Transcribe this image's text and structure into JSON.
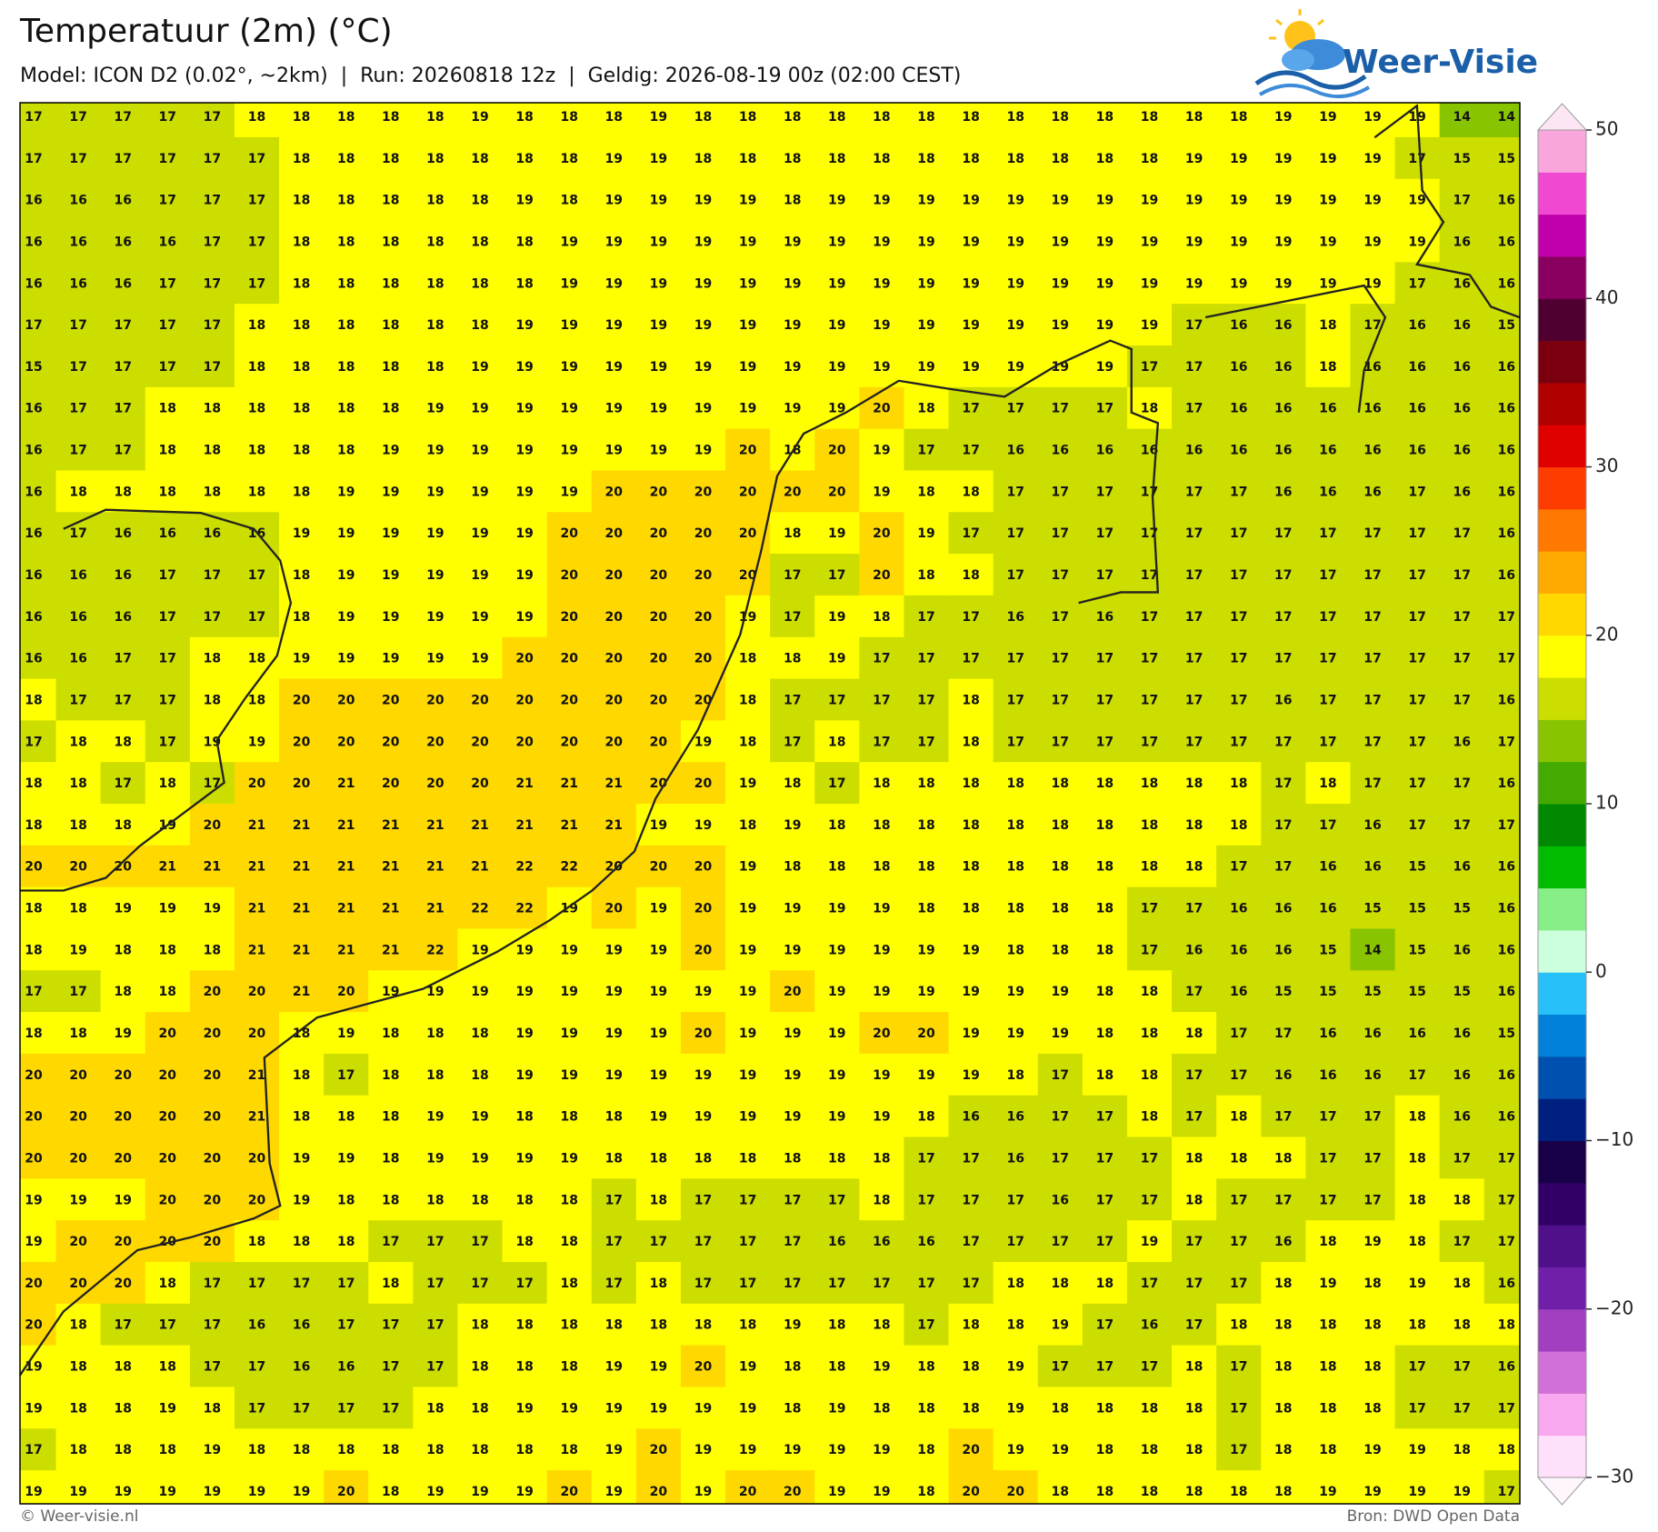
{
  "header": {
    "title": "Temperatuur (2m) (°C)",
    "subtitle": "Model: ICON D2 (0.02°, ~2km)  |  Run: 20260818 12z  |  Geldig: 2026-08-19 00z (02:00 CEST)",
    "logo": "Weer-Visie"
  },
  "map": {
    "rows": [
      [
        17,
        17,
        17,
        17,
        17,
        18,
        18,
        18,
        18,
        18,
        19,
        18,
        18,
        18,
        19,
        18,
        18,
        18,
        18,
        18,
        18,
        18,
        18,
        18,
        18,
        18,
        18,
        18,
        19,
        19,
        19,
        19,
        14,
        14
      ],
      [
        17,
        17,
        17,
        17,
        17,
        17,
        18,
        18,
        18,
        18,
        18,
        18,
        18,
        19,
        19,
        18,
        18,
        18,
        18,
        18,
        18,
        18,
        18,
        18,
        18,
        18,
        19,
        19,
        19,
        19,
        19,
        17,
        15,
        15
      ],
      [
        16,
        16,
        16,
        17,
        17,
        17,
        18,
        18,
        18,
        18,
        18,
        19,
        18,
        19,
        19,
        19,
        19,
        18,
        19,
        19,
        19,
        19,
        19,
        19,
        19,
        19,
        19,
        19,
        19,
        19,
        19,
        19,
        17,
        16
      ],
      [
        16,
        16,
        16,
        16,
        17,
        17,
        18,
        18,
        18,
        18,
        18,
        18,
        19,
        19,
        19,
        19,
        19,
        19,
        19,
        19,
        19,
        19,
        19,
        19,
        19,
        19,
        19,
        19,
        19,
        19,
        19,
        19,
        16,
        16
      ],
      [
        16,
        16,
        16,
        17,
        17,
        17,
        18,
        18,
        18,
        18,
        18,
        18,
        19,
        19,
        19,
        19,
        19,
        19,
        19,
        19,
        19,
        19,
        19,
        19,
        19,
        19,
        19,
        19,
        19,
        19,
        19,
        17,
        16,
        16
      ],
      [
        17,
        17,
        17,
        17,
        17,
        18,
        18,
        18,
        18,
        18,
        18,
        19,
        19,
        19,
        19,
        19,
        19,
        19,
        19,
        19,
        19,
        19,
        19,
        19,
        19,
        19,
        17,
        16,
        16,
        18,
        17,
        16,
        16,
        15
      ],
      [
        15,
        17,
        17,
        17,
        17,
        18,
        18,
        18,
        18,
        18,
        19,
        19,
        19,
        19,
        19,
        19,
        19,
        19,
        19,
        19,
        19,
        19,
        19,
        19,
        19,
        17,
        17,
        16,
        16,
        18,
        16,
        16,
        16,
        16
      ],
      [
        16,
        17,
        17,
        18,
        18,
        18,
        18,
        18,
        18,
        19,
        19,
        19,
        19,
        19,
        19,
        19,
        19,
        19,
        19,
        20,
        18,
        17,
        17,
        17,
        17,
        18,
        17,
        16,
        16,
        16,
        16,
        16,
        16,
        16
      ],
      [
        16,
        17,
        17,
        18,
        18,
        18,
        18,
        18,
        19,
        19,
        19,
        19,
        19,
        19,
        19,
        19,
        20,
        18,
        20,
        19,
        17,
        17,
        16,
        16,
        16,
        16,
        16,
        16,
        16,
        16,
        16,
        16,
        16,
        16
      ],
      [
        16,
        18,
        18,
        18,
        18,
        18,
        18,
        19,
        19,
        19,
        19,
        19,
        19,
        20,
        20,
        20,
        20,
        20,
        20,
        19,
        18,
        18,
        17,
        17,
        17,
        17,
        17,
        17,
        16,
        16,
        16,
        17,
        16,
        16
      ],
      [
        16,
        17,
        16,
        16,
        16,
        16,
        19,
        19,
        19,
        19,
        19,
        19,
        20,
        20,
        20,
        20,
        20,
        18,
        19,
        20,
        19,
        17,
        17,
        17,
        17,
        17,
        17,
        17,
        17,
        17,
        17,
        17,
        17,
        16
      ],
      [
        16,
        16,
        16,
        17,
        17,
        17,
        18,
        19,
        19,
        19,
        19,
        19,
        20,
        20,
        20,
        20,
        20,
        17,
        17,
        20,
        18,
        18,
        17,
        17,
        17,
        17,
        17,
        17,
        17,
        17,
        17,
        17,
        17,
        16
      ],
      [
        16,
        16,
        16,
        17,
        17,
        17,
        18,
        19,
        19,
        19,
        19,
        19,
        20,
        20,
        20,
        20,
        19,
        17,
        19,
        18,
        17,
        17,
        16,
        17,
        16,
        17,
        17,
        17,
        17,
        17,
        17,
        17,
        17,
        17
      ],
      [
        16,
        16,
        17,
        17,
        18,
        18,
        19,
        19,
        19,
        19,
        19,
        20,
        20,
        20,
        20,
        20,
        18,
        18,
        19,
        17,
        17,
        17,
        17,
        17,
        17,
        17,
        17,
        17,
        17,
        17,
        17,
        17,
        17,
        17
      ],
      [
        18,
        17,
        17,
        17,
        18,
        18,
        20,
        20,
        20,
        20,
        20,
        20,
        20,
        20,
        20,
        20,
        18,
        17,
        17,
        17,
        17,
        18,
        17,
        17,
        17,
        17,
        17,
        17,
        16,
        17,
        17,
        17,
        17,
        16
      ],
      [
        17,
        18,
        18,
        17,
        19,
        19,
        20,
        20,
        20,
        20,
        20,
        20,
        20,
        20,
        20,
        19,
        18,
        17,
        18,
        17,
        17,
        18,
        17,
        17,
        17,
        17,
        17,
        17,
        17,
        17,
        17,
        17,
        16,
        17
      ],
      [
        18,
        18,
        17,
        18,
        17,
        20,
        20,
        21,
        20,
        20,
        20,
        21,
        21,
        21,
        20,
        20,
        19,
        18,
        17,
        18,
        18,
        18,
        18,
        18,
        18,
        18,
        18,
        18,
        17,
        18,
        17,
        17,
        17,
        16
      ],
      [
        18,
        18,
        18,
        19,
        20,
        21,
        21,
        21,
        21,
        21,
        21,
        21,
        21,
        21,
        19,
        19,
        18,
        19,
        18,
        18,
        18,
        18,
        18,
        18,
        18,
        18,
        18,
        18,
        17,
        17,
        16,
        17,
        17,
        17
      ],
      [
        20,
        20,
        20,
        21,
        21,
        21,
        21,
        21,
        21,
        21,
        21,
        22,
        22,
        20,
        20,
        20,
        19,
        18,
        18,
        18,
        18,
        18,
        18,
        18,
        18,
        18,
        18,
        17,
        17,
        16,
        16,
        15,
        16,
        16
      ],
      [
        18,
        18,
        19,
        19,
        19,
        21,
        21,
        21,
        21,
        21,
        22,
        22,
        19,
        20,
        19,
        20,
        19,
        19,
        19,
        19,
        18,
        18,
        18,
        18,
        18,
        17,
        17,
        16,
        16,
        16,
        15,
        15,
        15,
        16
      ],
      [
        18,
        19,
        18,
        18,
        18,
        21,
        21,
        21,
        21,
        22,
        19,
        19,
        19,
        19,
        19,
        20,
        19,
        19,
        19,
        19,
        19,
        19,
        18,
        18,
        18,
        17,
        16,
        16,
        16,
        15,
        14,
        15,
        16,
        16
      ],
      [
        17,
        17,
        18,
        18,
        20,
        20,
        21,
        20,
        19,
        19,
        19,
        19,
        19,
        19,
        19,
        19,
        19,
        20,
        19,
        19,
        19,
        19,
        19,
        19,
        18,
        18,
        17,
        16,
        15,
        15,
        15,
        15,
        15,
        16
      ],
      [
        18,
        18,
        19,
        20,
        20,
        20,
        18,
        19,
        18,
        18,
        18,
        19,
        19,
        19,
        19,
        20,
        19,
        19,
        19,
        20,
        20,
        19,
        19,
        19,
        18,
        18,
        18,
        17,
        17,
        16,
        16,
        16,
        16,
        15
      ],
      [
        20,
        20,
        20,
        20,
        20,
        21,
        18,
        17,
        18,
        18,
        18,
        19,
        19,
        19,
        19,
        19,
        19,
        19,
        19,
        19,
        19,
        19,
        18,
        17,
        18,
        18,
        17,
        17,
        16,
        16,
        16,
        17,
        16,
        16
      ],
      [
        20,
        20,
        20,
        20,
        20,
        21,
        18,
        18,
        18,
        19,
        19,
        18,
        18,
        18,
        19,
        19,
        19,
        19,
        19,
        19,
        18,
        16,
        16,
        17,
        17,
        18,
        17,
        18,
        17,
        17,
        17,
        18,
        16,
        16
      ],
      [
        20,
        20,
        20,
        20,
        20,
        20,
        19,
        19,
        18,
        19,
        19,
        19,
        19,
        18,
        18,
        18,
        18,
        18,
        18,
        18,
        17,
        17,
        16,
        17,
        17,
        17,
        18,
        18,
        18,
        17,
        17,
        18,
        17,
        17
      ],
      [
        19,
        19,
        19,
        20,
        20,
        20,
        19,
        18,
        18,
        18,
        18,
        18,
        18,
        17,
        18,
        17,
        17,
        17,
        17,
        18,
        17,
        17,
        17,
        16,
        17,
        17,
        18,
        17,
        17,
        17,
        17,
        18,
        18,
        17
      ],
      [
        19,
        20,
        20,
        20,
        20,
        18,
        18,
        18,
        17,
        17,
        17,
        18,
        18,
        17,
        17,
        17,
        17,
        17,
        16,
        16,
        16,
        17,
        17,
        17,
        17,
        19,
        17,
        17,
        16,
        18,
        19,
        18,
        17,
        17
      ],
      [
        20,
        20,
        20,
        18,
        17,
        17,
        17,
        17,
        18,
        17,
        17,
        17,
        18,
        17,
        18,
        17,
        17,
        17,
        17,
        17,
        17,
        17,
        18,
        18,
        18,
        17,
        17,
        17,
        18,
        19,
        18,
        19,
        18,
        16
      ],
      [
        20,
        18,
        17,
        17,
        17,
        16,
        16,
        17,
        17,
        17,
        18,
        18,
        18,
        18,
        18,
        18,
        18,
        19,
        18,
        18,
        17,
        18,
        18,
        19,
        17,
        16,
        17,
        18,
        18,
        18,
        18,
        18,
        18,
        18
      ],
      [
        19,
        18,
        18,
        18,
        17,
        17,
        16,
        16,
        17,
        17,
        18,
        18,
        18,
        19,
        19,
        20,
        19,
        18,
        18,
        19,
        18,
        18,
        19,
        17,
        17,
        17,
        18,
        17,
        18,
        18,
        18,
        17,
        17,
        16
      ],
      [
        19,
        18,
        18,
        19,
        18,
        17,
        17,
        17,
        17,
        18,
        18,
        19,
        19,
        19,
        19,
        19,
        19,
        18,
        19,
        18,
        18,
        18,
        19,
        18,
        18,
        18,
        18,
        17,
        18,
        18,
        18,
        17,
        17,
        17
      ],
      [
        17,
        18,
        18,
        18,
        19,
        18,
        18,
        18,
        18,
        18,
        18,
        18,
        18,
        19,
        20,
        19,
        19,
        19,
        19,
        19,
        18,
        20,
        19,
        19,
        18,
        18,
        18,
        17,
        18,
        18,
        19,
        19,
        18,
        18
      ],
      [
        19,
        19,
        19,
        19,
        19,
        19,
        19,
        20,
        18,
        19,
        19,
        19,
        20,
        19,
        20,
        19,
        20,
        20,
        19,
        19,
        18,
        20,
        20,
        18,
        18,
        18,
        18,
        18,
        18,
        19,
        19,
        19,
        19,
        17
      ]
    ]
  },
  "colorbar": {
    "lim": [
      -30,
      50
    ],
    "ticks": [
      50,
      40,
      30,
      20,
      10,
      0,
      {
        "value": -10,
        "label": "−10"
      },
      {
        "value": -20,
        "label": "−20"
      },
      {
        "value": -30,
        "label": "−30"
      }
    ],
    "colors": [
      "#ffe0fa",
      "#f8a8ee",
      "#d070d8",
      "#a040c0",
      "#7020a8",
      "#50108a",
      "#300066",
      "#180048",
      "#002080",
      "#0050b0",
      "#0080d8",
      "#28c0f8",
      "#ccffdd",
      "#88ee88",
      "#00bb00",
      "#008800",
      "#44aa00",
      "#88c400",
      "#ccdd00",
      "#ffff00",
      "#ffd800",
      "#ffaa00",
      "#ff7800",
      "#ff3c00",
      "#e00000",
      "#b00000",
      "#7a0010",
      "#500030",
      "#8a0060",
      "#c000aa",
      "#f048d0",
      "#f9a6dc"
    ]
  },
  "footer": {
    "left": "© Weer-visie.nl",
    "right": "Bron: DWD Open Data"
  }
}
